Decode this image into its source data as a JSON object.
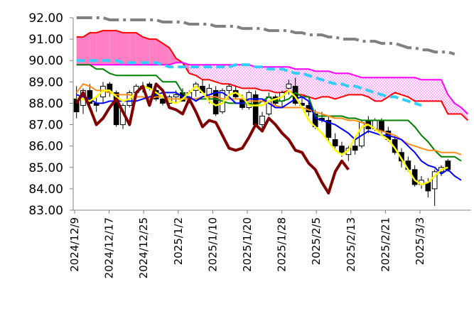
{
  "chart_data": {
    "type": "candlestick",
    "yticks": [
      "92.00",
      "91.00",
      "90.00",
      "89.00",
      "88.00",
      "87.00",
      "86.00",
      "85.00",
      "84.00",
      "83.00"
    ],
    "ylim": [
      83,
      92
    ],
    "x_tick_labels": [
      "2024/12/9",
      "2024/12/17",
      "2024/12/25",
      "2025/1/2",
      "2025/1/10",
      "2025/1/20",
      "2025/1/28",
      "2025/2/5",
      "2025/2/13",
      "2025/2/21",
      "2025/3/3"
    ],
    "grid": false,
    "legend": "none",
    "colors": {
      "cloud_fill": "#ff7fc4",
      "cloud_dotted": "#ff66ff",
      "red_line": "#ff0000",
      "magenta_line": "#ff00ff",
      "blue_line": "#0000ff",
      "green_line": "#008000",
      "orange_line": "#ff8c1a",
      "yellow_line": "#ffff00",
      "dark_red_line": "#800000",
      "cyan_dashed": "#33ccff",
      "gray_dashdot": "#808080",
      "candle_up": "#ffffff",
      "candle_down": "#000000"
    },
    "candles": [
      [
        88.2,
        88.8,
        87.3,
        87.6
      ],
      [
        87.9,
        88.7,
        87.5,
        88.6
      ],
      [
        88.6,
        88.9,
        87.8,
        88.0
      ],
      [
        88.0,
        88.3,
        87.6,
        87.9
      ],
      [
        88.3,
        89.0,
        88.0,
        88.8
      ],
      [
        88.9,
        89.0,
        88.3,
        88.5
      ],
      [
        88.5,
        88.6,
        86.9,
        87.0
      ],
      [
        87.0,
        88.0,
        86.8,
        87.9
      ],
      [
        87.9,
        88.6,
        87.8,
        88.5
      ],
      [
        88.5,
        88.9,
        88.2,
        88.8
      ],
      [
        88.8,
        89.0,
        88.5,
        88.8
      ],
      [
        88.9,
        89.0,
        88.6,
        88.7
      ],
      [
        88.6,
        88.9,
        88.1,
        88.2
      ],
      [
        88.2,
        88.3,
        87.9,
        88.0
      ],
      [
        88.0,
        88.4,
        87.9,
        88.3
      ],
      [
        88.3,
        88.6,
        88.0,
        88.4
      ],
      [
        88.5,
        88.7,
        88.1,
        88.1
      ],
      [
        88.2,
        88.6,
        88.0,
        88.5
      ],
      [
        88.6,
        89.0,
        88.3,
        88.9
      ],
      [
        88.8,
        89.1,
        88.5,
        88.5
      ],
      [
        88.4,
        88.9,
        88.0,
        88.7
      ],
      [
        88.6,
        88.8,
        87.4,
        87.5
      ],
      [
        87.6,
        88.7,
        87.5,
        88.6
      ],
      [
        88.6,
        88.9,
        88.4,
        88.8
      ],
      [
        88.6,
        88.8,
        88.2,
        88.3
      ],
      [
        88.2,
        88.4,
        87.7,
        87.8
      ],
      [
        87.8,
        88.6,
        87.7,
        88.5
      ],
      [
        88.4,
        88.6,
        86.9,
        87.0
      ],
      [
        87.0,
        87.6,
        86.8,
        87.4
      ],
      [
        87.5,
        88.5,
        87.4,
        88.3
      ],
      [
        88.3,
        88.4,
        87.9,
        88.0
      ],
      [
        88.1,
        88.6,
        87.8,
        88.5
      ],
      [
        88.7,
        89.1,
        88.4,
        88.9
      ],
      [
        88.8,
        89.2,
        87.9,
        88.0
      ],
      [
        88.0,
        88.3,
        87.8,
        87.9
      ],
      [
        87.9,
        88.1,
        87.4,
        87.6
      ],
      [
        87.5,
        87.7,
        86.8,
        86.9
      ],
      [
        87.3,
        87.6,
        87.1,
        87.2
      ],
      [
        87.2,
        87.4,
        86.2,
        86.4
      ],
      [
        86.3,
        86.6,
        85.9,
        86.0
      ],
      [
        86.0,
        86.2,
        85.5,
        85.7
      ],
      [
        85.6,
        86.0,
        85.3,
        85.9
      ],
      [
        86.0,
        86.3,
        85.6,
        85.8
      ],
      [
        86.0,
        87.2,
        85.9,
        87.1
      ],
      [
        87.2,
        87.4,
        86.6,
        86.8
      ],
      [
        86.8,
        87.3,
        86.7,
        87.2
      ],
      [
        87.2,
        87.3,
        86.6,
        86.7
      ],
      [
        86.7,
        86.9,
        86.2,
        86.3
      ],
      [
        86.3,
        86.5,
        85.6,
        85.7
      ],
      [
        85.7,
        85.9,
        85.0,
        85.3
      ],
      [
        85.3,
        85.5,
        84.8,
        84.9
      ],
      [
        84.9,
        85.1,
        84.1,
        84.2
      ],
      [
        84.2,
        84.6,
        84.0,
        84.4
      ],
      [
        84.3,
        84.5,
        83.6,
        83.9
      ],
      [
        84.0,
        84.9,
        83.2,
        84.8
      ],
      [
        84.8,
        85.1,
        84.6,
        85.0
      ],
      [
        85.3,
        85.4,
        84.8,
        84.9
      ]
    ],
    "series": [
      {
        "color_key": "red_line",
        "values": [
          91.1,
          91.1,
          91.3,
          91.3,
          91.4,
          91.4,
          91.4,
          91.3,
          91.3,
          91.3,
          91.1,
          91.0,
          91.0,
          90.8,
          90.6,
          90.1,
          89.9,
          89.4,
          89.3,
          89.1,
          89.1,
          89.0,
          88.9,
          88.9,
          88.8,
          88.7,
          88.7,
          88.7,
          88.6,
          88.6,
          88.5,
          88.5,
          88.6,
          88.4,
          88.4,
          88.3,
          88.2,
          88.3,
          88.3,
          88.2,
          88.3,
          88.4,
          88.4,
          88.4,
          88.3,
          88.1,
          88.1,
          88.3,
          88.5,
          88.4,
          88.3,
          88.1,
          88.1,
          88.1,
          88.1,
          88.1,
          87.5,
          87.5,
          87.5,
          87.2
        ]
      },
      {
        "color_key": "magenta_line",
        "values": [
          89.8,
          89.8,
          89.8,
          89.8,
          89.8,
          89.8,
          89.8,
          89.8,
          89.8,
          89.8,
          89.8,
          89.8,
          89.8,
          89.8,
          89.8,
          89.9,
          89.9,
          89.8,
          89.8,
          89.8,
          89.8,
          89.8,
          89.8,
          89.8,
          89.8,
          89.8,
          89.8,
          89.7,
          89.7,
          89.7,
          89.7,
          89.7,
          89.7,
          89.6,
          89.6,
          89.6,
          89.5,
          89.5,
          89.5,
          89.4,
          89.4,
          89.4,
          89.3,
          89.2,
          89.2,
          89.2,
          89.2,
          89.2,
          89.2,
          89.2,
          89.2,
          89.2,
          89.1,
          89.1,
          89.1,
          89.1,
          88.4,
          88.0,
          87.8,
          87.5
        ]
      },
      {
        "color_key": "cyan_dashed",
        "values": [
          90.0,
          90.0,
          90.0,
          90.0,
          90.0,
          90.0,
          90.0,
          89.9,
          89.9,
          89.9,
          89.9,
          89.9,
          89.9,
          89.8,
          89.7,
          89.7,
          89.7,
          89.7,
          89.7,
          89.7,
          89.7,
          89.7,
          89.7,
          89.7,
          89.8,
          89.8,
          89.8,
          89.7,
          89.7,
          89.6,
          89.6,
          89.6,
          89.5,
          89.4,
          89.4,
          89.3,
          89.2,
          89.1,
          89.0,
          88.9,
          88.9,
          88.8,
          88.8,
          88.7,
          88.6,
          88.5,
          88.4,
          88.3,
          88.3,
          88.2,
          88.1,
          88.0,
          87.9
        ]
      },
      {
        "color_key": "gray_dashdot",
        "values": [
          92.0,
          92.0,
          92.0,
          92.0,
          92.0,
          91.9,
          91.9,
          91.9,
          91.9,
          91.9,
          91.9,
          91.9,
          91.9,
          91.8,
          91.8,
          91.8,
          91.8,
          91.7,
          91.7,
          91.7,
          91.7,
          91.6,
          91.6,
          91.6,
          91.6,
          91.5,
          91.5,
          91.5,
          91.5,
          91.4,
          91.4,
          91.4,
          91.4,
          91.3,
          91.3,
          91.2,
          91.2,
          91.2,
          91.1,
          91.1,
          91.0,
          91.0,
          91.0,
          90.9,
          90.9,
          90.9,
          90.8,
          90.8,
          90.8,
          90.7,
          90.6,
          90.6,
          90.5,
          90.5,
          90.4,
          90.4,
          90.4,
          90.3
        ]
      },
      {
        "color_key": "green_line",
        "values": [
          89.8,
          89.8,
          89.8,
          89.6,
          89.6,
          89.4,
          89.3,
          89.3,
          89.3,
          89.3,
          89.3,
          89.3,
          89.3,
          89.0,
          89.0,
          89.0,
          88.5,
          88.2,
          88.2,
          88.2,
          88.2,
          88.2,
          88.1,
          88.0,
          88.0,
          88.0,
          88.0,
          87.9,
          88.1,
          88.3,
          88.1,
          88.1,
          88.2,
          88.5,
          88.3,
          88.3,
          87.4,
          87.4,
          87.4,
          87.4,
          87.4,
          87.3,
          87.3,
          87.2,
          87.2,
          87.2,
          87.2,
          87.2,
          87.2,
          87.2,
          87.2,
          86.9,
          86.5,
          86.2,
          85.8,
          85.5,
          85.5,
          85.5,
          85.3
        ]
      },
      {
        "color_key": "blue_line",
        "values": [
          88.4,
          88.3,
          88.2,
          88.0,
          88.0,
          88.1,
          88.1,
          88.1,
          88.1,
          88.1,
          88.2,
          88.3,
          88.4,
          88.5,
          88.5,
          88.5,
          88.3,
          88.3,
          88.1,
          88.3,
          88.4,
          88.5,
          88.5,
          88.3,
          88.0,
          88.0,
          88.2,
          88.2,
          88.2,
          88.0,
          87.8,
          87.8,
          88.0,
          88.2,
          88.3,
          88.1,
          87.3,
          87.2,
          87.1,
          87.0,
          86.8,
          86.6,
          86.3,
          86.5,
          86.7,
          86.6,
          86.5,
          86.5,
          86.4,
          86.3,
          86.0,
          85.7,
          85.3,
          85.1,
          85.0,
          84.7,
          84.9,
          84.6,
          84.4
        ]
      },
      {
        "color_key": "orange_line",
        "values": [
          88.5,
          88.9,
          88.8,
          88.6,
          88.6,
          88.5,
          88.4,
          88.4,
          88.4,
          88.3,
          88.3,
          88.2,
          88.3,
          88.3,
          88.2,
          88.2,
          88.2,
          88.2,
          88.2,
          88.3,
          88.3,
          88.3,
          88.2,
          88.2,
          88.2,
          88.2,
          88.1,
          88.1,
          88.1,
          88.0,
          87.9,
          87.8,
          87.8,
          87.8,
          87.8,
          87.7,
          87.6,
          87.5,
          87.4,
          87.3,
          87.3,
          87.2,
          87.2,
          87.1,
          87.0,
          86.8,
          86.7,
          86.6,
          86.5,
          86.3,
          86.1,
          86.0,
          85.9,
          85.8,
          85.8,
          85.7,
          85.7,
          85.7,
          85.6
        ]
      },
      {
        "color_key": "yellow_line",
        "values": [
          88.2,
          88.2,
          88.1,
          88.3,
          88.6,
          88.6,
          88.3,
          88.1,
          88.2,
          88.5,
          88.8,
          88.7,
          88.5,
          88.3,
          88.1,
          88.0,
          88.2,
          88.5,
          88.8,
          88.5,
          88.1,
          87.9,
          88.0,
          88.4,
          88.5,
          88.3,
          87.9,
          87.9,
          87.9,
          88.1,
          88.2,
          88.3,
          88.6,
          88.3,
          87.8,
          87.2,
          86.9,
          86.6,
          86.2,
          85.8,
          85.6,
          85.8,
          86.4,
          86.9,
          87.0,
          86.8,
          86.5,
          86.3,
          85.9,
          85.4,
          84.9,
          84.4,
          84.2,
          84.3,
          84.6,
          84.9,
          85.0
        ]
      },
      {
        "color_key": "dark_red_line",
        "values": [
          88.0,
          88.5,
          87.8,
          87.0,
          87.3,
          87.8,
          88.2,
          87.6,
          87.0,
          88.5,
          88.8,
          87.9,
          88.9,
          88.6,
          87.8,
          87.7,
          87.5,
          88.2,
          87.6,
          86.9,
          87.2,
          87.1,
          86.5,
          85.9,
          85.8,
          85.9,
          86.4,
          87.0,
          86.7,
          87.3,
          87.0,
          86.6,
          86.3,
          85.8,
          85.7,
          85.2,
          84.9,
          84.3,
          83.8,
          84.8,
          85.3,
          84.9
        ]
      }
    ]
  }
}
